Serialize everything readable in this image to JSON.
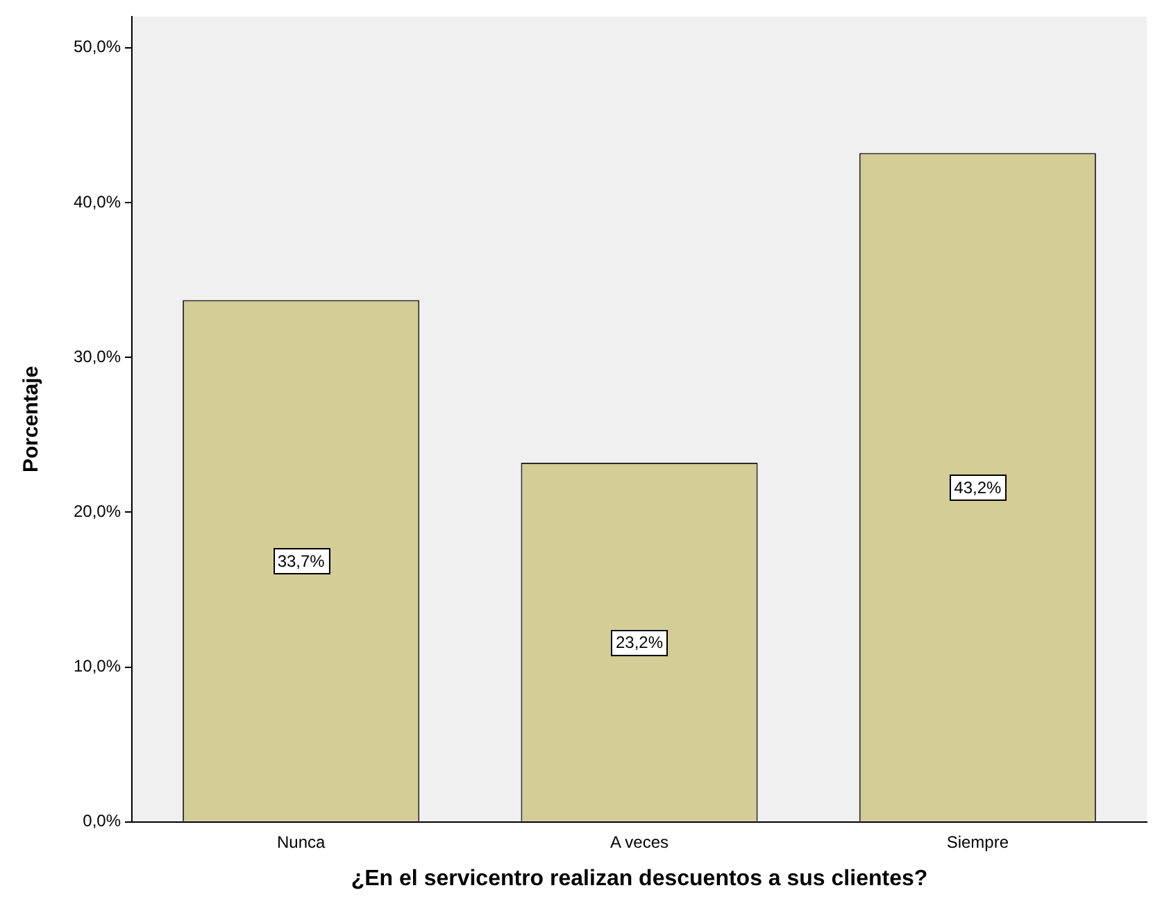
{
  "chart_data": {
    "type": "bar",
    "xlabel": "¿En el servicentro realizan descuentos a sus clientes?",
    "ylabel": "Porcentaje",
    "categories": [
      "Nunca",
      "A veces",
      "Siempre"
    ],
    "values": [
      33.7,
      23.2,
      43.2
    ],
    "value_labels": [
      "33,7%",
      "23,2%",
      "43,2%"
    ],
    "color": "#d3cd96",
    "ylim": [
      0,
      52
    ],
    "yticks": [
      {
        "value": 0,
        "label": "0,0%"
      },
      {
        "value": 10,
        "label": "10,0%"
      },
      {
        "value": 20,
        "label": "20,0%"
      },
      {
        "value": 30,
        "label": "30,0%"
      },
      {
        "value": 40,
        "label": "40,0%"
      },
      {
        "value": 50,
        "label": "50,0%"
      }
    ],
    "legend": false
  }
}
